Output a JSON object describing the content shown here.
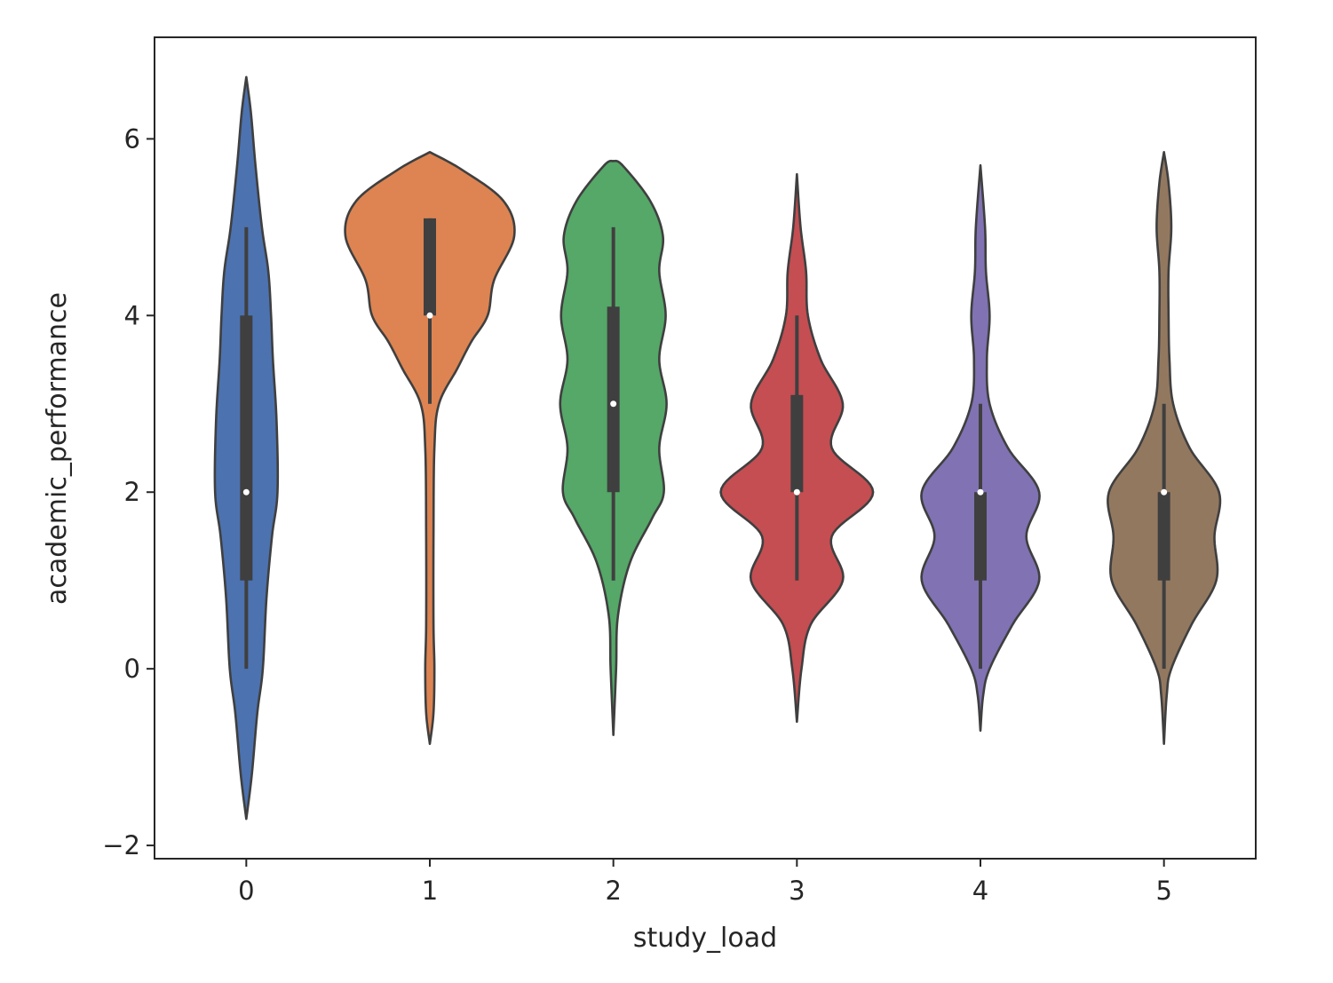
{
  "chart_data": {
    "type": "violin",
    "title": "",
    "xlabel": "study_load",
    "ylabel": "academic_performance",
    "categories": [
      "0",
      "1",
      "2",
      "3",
      "4",
      "5"
    ],
    "yticks": [
      -2,
      0,
      2,
      4,
      6
    ],
    "ytick_labels": [
      "−2",
      "0",
      "2",
      "4",
      "6"
    ],
    "xlim": [
      -0.5,
      5.5
    ],
    "ylim": [
      -2.15,
      7.15
    ],
    "grid": false,
    "colors": [
      "#4c72b0",
      "#dd8452",
      "#55a868",
      "#c44e52",
      "#8172b3",
      "#937860"
    ],
    "series": [
      {
        "category": "0",
        "color": "#4c72b0",
        "box": {
          "q1": 1,
          "median": 2,
          "q3": 4,
          "whisker_low": 0,
          "whisker_high": 5
        },
        "density": [
          [
            -1.7,
            0.0
          ],
          [
            -1.2,
            0.06
          ],
          [
            -0.5,
            0.12
          ],
          [
            0.0,
            0.18
          ],
          [
            0.8,
            0.22
          ],
          [
            1.5,
            0.28
          ],
          [
            2.0,
            0.34
          ],
          [
            2.8,
            0.33
          ],
          [
            3.5,
            0.29
          ],
          [
            4.0,
            0.27
          ],
          [
            4.5,
            0.24
          ],
          [
            5.0,
            0.17
          ],
          [
            5.7,
            0.1
          ],
          [
            6.3,
            0.05
          ],
          [
            6.7,
            0.0
          ]
        ]
      },
      {
        "category": "1",
        "color": "#dd8452",
        "box": {
          "q1": 4,
          "median": 4,
          "q3": 5.1,
          "whisker_low": 3,
          "whisker_high": 5.1
        },
        "density": [
          [
            -0.85,
            0.0
          ],
          [
            -0.5,
            0.04
          ],
          [
            0.0,
            0.05
          ],
          [
            0.5,
            0.04
          ],
          [
            1.5,
            0.04
          ],
          [
            2.5,
            0.05
          ],
          [
            3.0,
            0.1
          ],
          [
            3.4,
            0.3
          ],
          [
            3.7,
            0.45
          ],
          [
            4.0,
            0.63
          ],
          [
            4.4,
            0.7
          ],
          [
            4.9,
            0.92
          ],
          [
            5.3,
            0.8
          ],
          [
            5.65,
            0.35
          ],
          [
            5.85,
            0.0
          ]
        ]
      },
      {
        "category": "2",
        "color": "#55a868",
        "box": {
          "q1": 2,
          "median": 3,
          "q3": 4.1,
          "whisker_low": 1,
          "whisker_high": 5
        },
        "density": [
          [
            -0.75,
            0.0
          ],
          [
            0.0,
            0.03
          ],
          [
            0.6,
            0.05
          ],
          [
            1.2,
            0.18
          ],
          [
            1.7,
            0.42
          ],
          [
            2.0,
            0.55
          ],
          [
            2.5,
            0.5
          ],
          [
            3.0,
            0.58
          ],
          [
            3.5,
            0.5
          ],
          [
            4.0,
            0.57
          ],
          [
            4.5,
            0.5
          ],
          [
            4.9,
            0.54
          ],
          [
            5.3,
            0.4
          ],
          [
            5.7,
            0.1
          ],
          [
            5.75,
            0.0
          ]
        ]
      },
      {
        "category": "3",
        "color": "#c44e52",
        "box": {
          "q1": 2,
          "median": 2,
          "q3": 3.1,
          "whisker_low": 1,
          "whisker_high": 4
        },
        "density": [
          [
            -0.6,
            0.0
          ],
          [
            0.0,
            0.05
          ],
          [
            0.5,
            0.15
          ],
          [
            1.0,
            0.5
          ],
          [
            1.5,
            0.38
          ],
          [
            2.0,
            0.83
          ],
          [
            2.5,
            0.38
          ],
          [
            3.0,
            0.5
          ],
          [
            3.5,
            0.26
          ],
          [
            4.0,
            0.12
          ],
          [
            4.5,
            0.1
          ],
          [
            5.0,
            0.04
          ],
          [
            5.6,
            0.0
          ]
        ]
      },
      {
        "category": "4",
        "color": "#8172b3",
        "box": {
          "q1": 1,
          "median": 2,
          "q3": 2,
          "whisker_low": 0,
          "whisker_high": 3
        },
        "density": [
          [
            -0.7,
            0.0
          ],
          [
            -0.3,
            0.03
          ],
          [
            0.0,
            0.1
          ],
          [
            0.5,
            0.35
          ],
          [
            1.0,
            0.64
          ],
          [
            1.5,
            0.5
          ],
          [
            2.0,
            0.64
          ],
          [
            2.5,
            0.3
          ],
          [
            3.0,
            0.1
          ],
          [
            3.5,
            0.07
          ],
          [
            4.0,
            0.1
          ],
          [
            4.5,
            0.06
          ],
          [
            5.0,
            0.05
          ],
          [
            5.7,
            0.0
          ]
        ]
      },
      {
        "category": "5",
        "color": "#937860",
        "box": {
          "q1": 1,
          "median": 2,
          "q3": 2,
          "whisker_low": 0,
          "whisker_high": 3
        },
        "density": [
          [
            -0.85,
            0.0
          ],
          [
            -0.3,
            0.03
          ],
          [
            0.0,
            0.08
          ],
          [
            0.5,
            0.3
          ],
          [
            1.0,
            0.57
          ],
          [
            1.5,
            0.55
          ],
          [
            2.0,
            0.6
          ],
          [
            2.5,
            0.28
          ],
          [
            3.0,
            0.1
          ],
          [
            3.5,
            0.06
          ],
          [
            4.0,
            0.05
          ],
          [
            4.5,
            0.05
          ],
          [
            5.0,
            0.08
          ],
          [
            5.5,
            0.05
          ],
          [
            5.85,
            0.0
          ]
        ]
      }
    ]
  }
}
